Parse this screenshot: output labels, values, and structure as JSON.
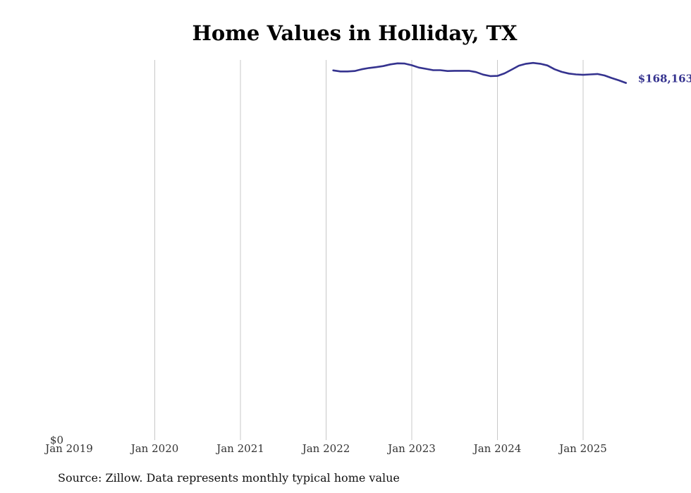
{
  "chart_data": {
    "type": "line",
    "title": "Home Values in Holliday, TX",
    "xlabel": "",
    "ylabel": "",
    "x_tick_labels": [
      "Jan 2019",
      "Jan 2020",
      "Jan 2021",
      "Jan 2022",
      "Jan 2023",
      "Jan 2024",
      "Jan 2025"
    ],
    "y_tick_labels": [
      "$0"
    ],
    "ylim": [
      0,
      179000
    ],
    "grid": "vertical lines at each January",
    "series": [
      {
        "color": "#35338f",
        "end_label": "$168,163",
        "x": [
          "2022-02",
          "2022-03",
          "2022-04",
          "2022-05",
          "2022-06",
          "2022-07",
          "2022-08",
          "2022-09",
          "2022-10",
          "2022-11",
          "2022-12",
          "2023-01",
          "2023-02",
          "2023-03",
          "2023-04",
          "2023-05",
          "2023-06",
          "2023-07",
          "2023-08",
          "2023-09",
          "2023-10",
          "2023-11",
          "2023-12",
          "2024-01",
          "2024-02",
          "2024-03",
          "2024-04",
          "2024-05",
          "2024-06",
          "2024-07",
          "2024-08",
          "2024-09",
          "2024-10",
          "2024-11",
          "2024-12",
          "2025-01",
          "2025-02",
          "2025-03",
          "2025-04",
          "2025-05",
          "2025-06",
          "2025-07"
        ],
        "y": [
          174100,
          173600,
          173600,
          173800,
          174600,
          175200,
          175600,
          176100,
          176900,
          177400,
          177300,
          176500,
          175400,
          174800,
          174200,
          174200,
          173800,
          173900,
          173900,
          173900,
          173300,
          172100,
          171400,
          171500,
          172700,
          174500,
          176300,
          177200,
          177600,
          177200,
          176400,
          174600,
          173400,
          172600,
          172200,
          172000,
          172200,
          172400,
          171700,
          170500,
          169400,
          168163
        ]
      }
    ]
  },
  "source_note": "Source: Zillow. Data represents monthly typical home value"
}
